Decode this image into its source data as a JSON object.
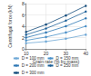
{
  "chart_data": {
    "type": "line",
    "x_label": "Grain rate (% by mass)",
    "y_label": "Centrifugal force (kN)",
    "x": [
      10,
      20,
      30,
      40
    ],
    "series": [
      {
        "name": "D = 100 mm",
        "color": "#6fa8d6",
        "values": [
          1.0,
          1.3,
          1.8,
          2.5
        ]
      },
      {
        "name": "D = 150 mm",
        "color": "#4a90c8",
        "values": [
          1.5,
          2.1,
          2.9,
          4.0
        ]
      },
      {
        "name": "D = 200 mm",
        "color": "#2f78b4",
        "values": [
          2.0,
          2.9,
          4.0,
          5.4
        ]
      },
      {
        "name": "D = 250 mm",
        "color": "#1f6299",
        "values": [
          2.5,
          3.6,
          5.0,
          6.6
        ]
      },
      {
        "name": "D = 300 mm",
        "color": "#124a7a",
        "values": [
          3.0,
          4.3,
          5.9,
          7.6
        ]
      }
    ],
    "xlim": [
      10,
      40
    ],
    "xticks": [
      10,
      20,
      30,
      40
    ],
    "ylim": [
      0,
      8
    ],
    "yticks": [
      0,
      2,
      4,
      6,
      8
    ],
    "grid": true,
    "legend": "bottom",
    "marker": "circle",
    "line_style": "solid"
  }
}
